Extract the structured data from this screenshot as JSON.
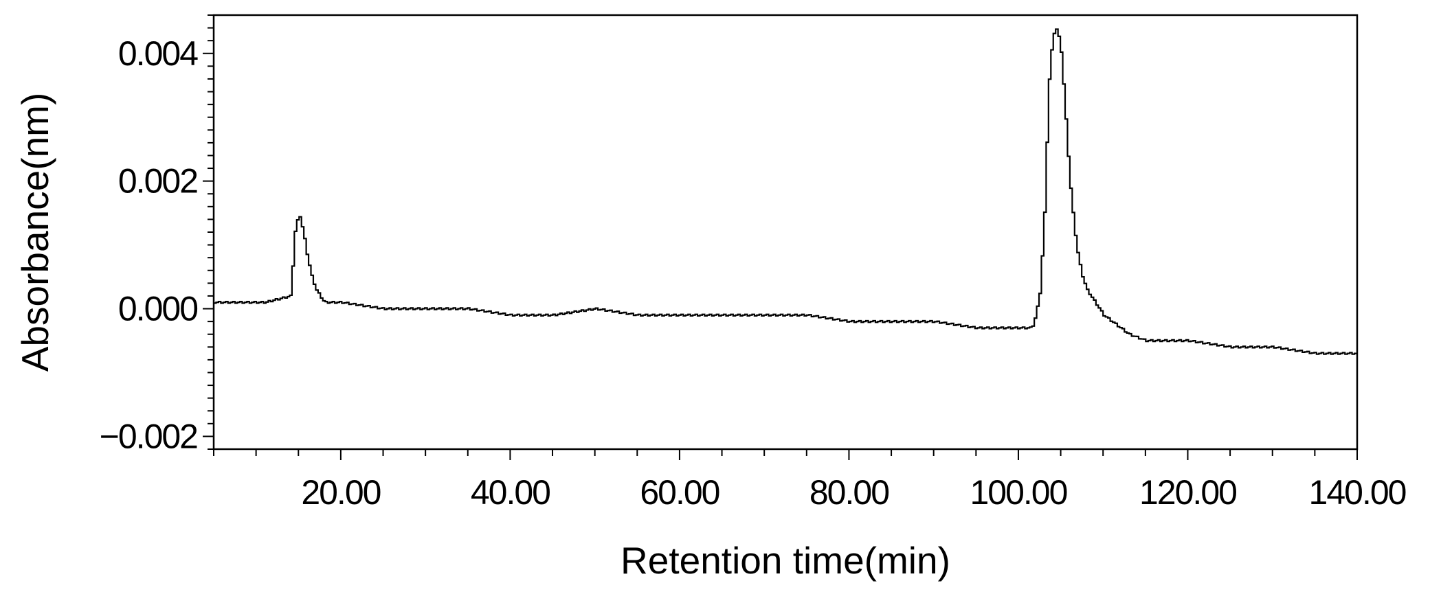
{
  "chart_data": {
    "type": "line",
    "xlabel": "Retention time(min)",
    "ylabel": "Absorbance(nm)",
    "xlim": [
      5,
      140
    ],
    "ylim": [
      -0.0022,
      0.0046
    ],
    "x_ticks": [
      20,
      40,
      60,
      80,
      100,
      120,
      140
    ],
    "x_tick_labels": [
      "20.00",
      "40.00",
      "60.00",
      "80.00",
      "100.00",
      "120.00",
      "140.00"
    ],
    "y_ticks": [
      -0.002,
      0.0,
      0.002,
      0.004
    ],
    "y_tick_labels": [
      "−0.002",
      "0.000",
      "0.002",
      "0.004"
    ],
    "grid": false,
    "series": [
      {
        "color": "#000000",
        "x": [
          5,
          8,
          11,
          14.0,
          14.5,
          15.0,
          15.5,
          16.0,
          16.5,
          17.0,
          17.5,
          18.0,
          19.0,
          20,
          25,
          30,
          35,
          40,
          45,
          50,
          55,
          60,
          65,
          70,
          75,
          80,
          85,
          90,
          95,
          100,
          101.5,
          102.0,
          102.5,
          103.0,
          103.5,
          104.0,
          104.5,
          105.0,
          105.5,
          106.0,
          106.5,
          107.0,
          107.5,
          108.0,
          109.0,
          110.0,
          111.0,
          112.0,
          113.0,
          115,
          120,
          125,
          130,
          135,
          140
        ],
        "y": [
          0.0001,
          0.0001,
          0.0001,
          0.0002,
          0.0012,
          0.0015,
          0.0012,
          0.0008,
          0.0005,
          0.0003,
          0.0002,
          0.0001,
          0.0001,
          0.0001,
          0.0,
          0.0,
          0.0,
          -0.0001,
          -0.0001,
          0.0,
          -0.0001,
          -0.0001,
          -0.0001,
          -0.0001,
          -0.0001,
          -0.0002,
          -0.0002,
          -0.0002,
          -0.0003,
          -0.0003,
          -0.0003,
          -0.0001,
          0.0003,
          0.0015,
          0.0035,
          0.0043,
          0.0044,
          0.004,
          0.003,
          0.002,
          0.0013,
          0.0008,
          0.0005,
          0.0003,
          0.0001,
          -0.0001,
          -0.0002,
          -0.0003,
          -0.0004,
          -0.0005,
          -0.0005,
          -0.0006,
          -0.0006,
          -0.0007,
          -0.0007
        ]
      }
    ]
  }
}
